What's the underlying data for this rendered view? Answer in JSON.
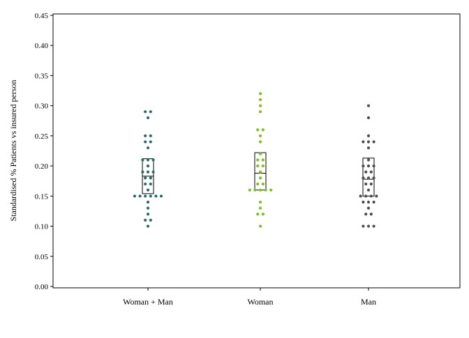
{
  "chart_data": {
    "type": "scatter",
    "title": "",
    "xlabel": "",
    "ylabel": "Standardised % Patients vs insured person",
    "ylim": [
      0,
      0.45
    ],
    "yticks": [
      "0.00",
      "0.05",
      "0.10",
      "0.15",
      "0.20",
      "0.25",
      "0.30",
      "0.35",
      "0.40",
      "0.45"
    ],
    "categories": [
      "Woman + Man",
      "Woman",
      "Man"
    ],
    "grid": false,
    "legend": "none",
    "series": [
      {
        "category": "Woman + Man",
        "color": "#2a6b6b",
        "points": [
          0.29,
          0.29,
          0.28,
          0.25,
          0.25,
          0.24,
          0.24,
          0.23,
          0.21,
          0.21,
          0.21,
          0.2,
          0.19,
          0.19,
          0.19,
          0.18,
          0.18,
          0.17,
          0.17,
          0.16,
          0.15,
          0.15,
          0.15,
          0.15,
          0.15,
          0.15,
          0.14,
          0.13,
          0.12,
          0.11,
          0.11,
          0.1
        ],
        "box": {
          "q1": 0.154,
          "median": 0.183,
          "q3": 0.212
        }
      },
      {
        "category": "Woman",
        "color": "#7fbf1f",
        "points": [
          0.32,
          0.31,
          0.3,
          0.29,
          0.26,
          0.26,
          0.25,
          0.24,
          0.22,
          0.21,
          0.21,
          0.2,
          0.2,
          0.19,
          0.18,
          0.17,
          0.17,
          0.16,
          0.16,
          0.16,
          0.16,
          0.16,
          0.14,
          0.13,
          0.12,
          0.12,
          0.1
        ],
        "box": {
          "q1": 0.16,
          "median": 0.188,
          "q3": 0.222
        }
      },
      {
        "category": "Man",
        "color": "#4d4d4d",
        "points": [
          0.3,
          0.28,
          0.25,
          0.24,
          0.24,
          0.24,
          0.23,
          0.21,
          0.2,
          0.2,
          0.2,
          0.19,
          0.19,
          0.18,
          0.18,
          0.18,
          0.17,
          0.17,
          0.16,
          0.15,
          0.15,
          0.15,
          0.15,
          0.14,
          0.14,
          0.14,
          0.13,
          0.12,
          0.12,
          0.1,
          0.1,
          0.1
        ],
        "box": {
          "q1": 0.15,
          "median": 0.178,
          "q3": 0.213
        }
      }
    ]
  }
}
